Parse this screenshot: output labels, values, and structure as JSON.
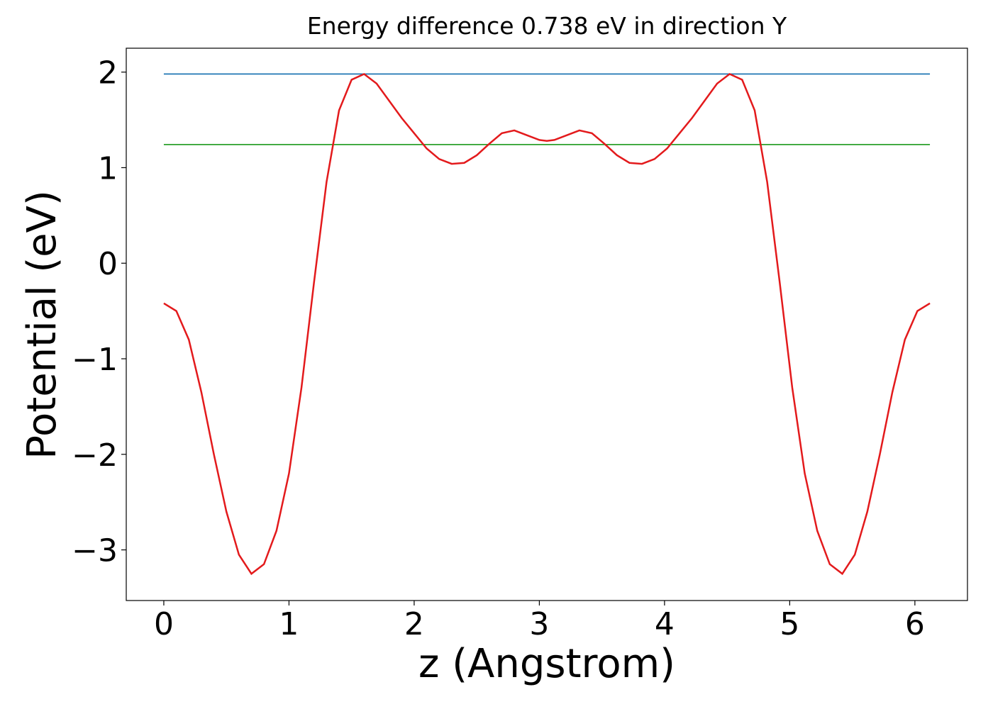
{
  "chart_data": {
    "type": "line",
    "title": "Energy difference 0.738 eV in direction Y",
    "x_label": "z (Angstrom)",
    "y_label": "Potential (eV)",
    "xlim": [
      -0.3,
      6.42
    ],
    "ylim": [
      -3.53,
      2.25
    ],
    "xticks": [
      0,
      1,
      2,
      3,
      4,
      5,
      6
    ],
    "yticks": [
      {
        "value": -3,
        "label": "−3"
      },
      {
        "value": -2,
        "label": "−2"
      },
      {
        "value": -1,
        "label": "−1"
      },
      0,
      1,
      2
    ],
    "grid": false,
    "series": [
      {
        "color": "#1f77b4",
        "x": [
          0,
          6.12
        ],
        "values": [
          1.98,
          1.98
        ]
      },
      {
        "color": "#2ca02c",
        "x": [
          0,
          6.12
        ],
        "values": [
          1.242,
          1.242
        ]
      },
      {
        "color": "#e31a1c",
        "x": [
          0,
          0.1,
          0.2,
          0.3,
          0.4,
          0.5,
          0.6,
          0.7,
          0.8,
          0.9,
          1.0,
          1.1,
          1.2,
          1.3,
          1.4,
          1.5,
          1.6,
          1.7,
          1.8,
          1.9,
          2.0,
          2.1,
          2.2,
          2.3,
          2.4,
          2.5,
          2.6,
          2.7,
          2.8,
          2.9,
          3.0,
          3.06,
          3.12,
          3.22,
          3.32,
          3.42,
          3.52,
          3.62,
          3.72,
          3.82,
          3.92,
          4.02,
          4.12,
          4.22,
          4.32,
          4.42,
          4.52,
          4.62,
          4.72,
          4.82,
          4.92,
          5.02,
          5.12,
          5.22,
          5.32,
          5.42,
          5.52,
          5.62,
          5.72,
          5.82,
          5.92,
          6.02,
          6.12
        ],
        "values": [
          -0.42,
          -0.5,
          -0.8,
          -1.35,
          -2.0,
          -2.6,
          -3.05,
          -3.25,
          -3.15,
          -2.8,
          -2.2,
          -1.3,
          -0.2,
          0.85,
          1.6,
          1.92,
          1.98,
          1.88,
          1.7,
          1.52,
          1.36,
          1.2,
          1.09,
          1.04,
          1.05,
          1.13,
          1.25,
          1.36,
          1.39,
          1.34,
          1.29,
          1.28,
          1.29,
          1.34,
          1.39,
          1.36,
          1.25,
          1.13,
          1.05,
          1.04,
          1.09,
          1.2,
          1.36,
          1.52,
          1.7,
          1.88,
          1.98,
          1.92,
          1.6,
          0.85,
          -0.2,
          -1.3,
          -2.2,
          -2.8,
          -3.15,
          -3.25,
          -3.05,
          -2.6,
          -2.0,
          -1.35,
          -0.8,
          -0.5,
          -0.42
        ]
      }
    ]
  }
}
